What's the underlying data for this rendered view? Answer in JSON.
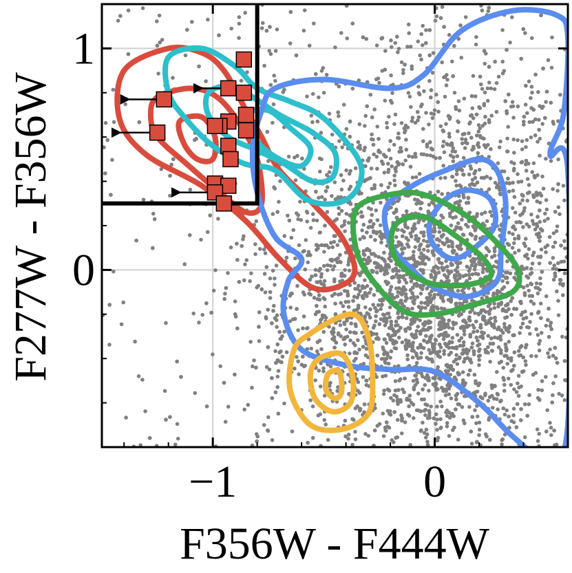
{
  "chart_data": {
    "type": "scatter",
    "title": "",
    "xlabel": "F356W - F444W",
    "ylabel": "F277W - F356W",
    "xlim": [
      -1.5,
      0.6
    ],
    "ylim": [
      -0.8,
      1.2
    ],
    "xticks": [
      {
        "value": -1,
        "label": "−1"
      },
      {
        "value": 0,
        "label": "0"
      }
    ],
    "yticks": [
      {
        "value": 0,
        "label": "0"
      },
      {
        "value": 1,
        "label": "1"
      }
    ],
    "grid": true,
    "selection_box": {
      "x_max": -0.8,
      "y_min": 0.3
    },
    "background_points": {
      "color": "#808080",
      "description_count": 4500,
      "bulk_center": [
        -0.05,
        -0.15
      ],
      "bulk_spread": [
        0.35,
        0.35
      ]
    },
    "contours": [
      {
        "color": "#D94C3D",
        "levels": [
          [
            [
              -1.4,
              0.9
            ],
            [
              -1.2,
              1.0
            ],
            [
              -1.05,
              0.98
            ],
            [
              -0.95,
              0.9
            ],
            [
              -0.85,
              0.72
            ],
            [
              -0.78,
              0.6
            ],
            [
              -0.7,
              0.45
            ],
            [
              -0.55,
              0.3
            ],
            [
              -0.42,
              0.15
            ],
            [
              -0.36,
              0.0
            ],
            [
              -0.42,
              -0.07
            ],
            [
              -0.55,
              -0.08
            ],
            [
              -0.7,
              0.05
            ],
            [
              -0.85,
              0.22
            ],
            [
              -1.05,
              0.38
            ],
            [
              -1.3,
              0.52
            ],
            [
              -1.42,
              0.68
            ]
          ],
          [
            [
              -1.25,
              0.78
            ],
            [
              -1.1,
              0.82
            ],
            [
              -0.98,
              0.78
            ],
            [
              -0.88,
              0.66
            ],
            [
              -0.8,
              0.5
            ],
            [
              -0.78,
              0.3
            ],
            [
              -0.85,
              0.26
            ],
            [
              -0.98,
              0.36
            ],
            [
              -1.12,
              0.48
            ],
            [
              -1.25,
              0.6
            ],
            [
              -1.28,
              0.7
            ]
          ],
          [
            [
              -1.15,
              0.67
            ],
            [
              -1.05,
              0.69
            ],
            [
              -0.99,
              0.6
            ],
            [
              -1.0,
              0.5
            ],
            [
              -1.07,
              0.5
            ],
            [
              -1.13,
              0.57
            ]
          ]
        ]
      },
      {
        "color": "#2DBFCB",
        "levels": [
          [
            [
              -1.2,
              0.96
            ],
            [
              -1.05,
              1.0
            ],
            [
              -0.9,
              0.92
            ],
            [
              -0.8,
              0.82
            ],
            [
              -0.65,
              0.76
            ],
            [
              -0.52,
              0.7
            ],
            [
              -0.4,
              0.58
            ],
            [
              -0.33,
              0.46
            ],
            [
              -0.36,
              0.35
            ],
            [
              -0.45,
              0.3
            ],
            [
              -0.58,
              0.32
            ],
            [
              -0.72,
              0.45
            ],
            [
              -0.86,
              0.48
            ],
            [
              -1.0,
              0.56
            ],
            [
              -1.12,
              0.68
            ],
            [
              -1.2,
              0.8
            ]
          ],
          [
            [
              -1.02,
              0.8
            ],
            [
              -0.92,
              0.83
            ],
            [
              -0.82,
              0.78
            ],
            [
              -0.7,
              0.7
            ],
            [
              -0.55,
              0.62
            ],
            [
              -0.45,
              0.53
            ],
            [
              -0.46,
              0.42
            ],
            [
              -0.55,
              0.4
            ],
            [
              -0.68,
              0.48
            ],
            [
              -0.8,
              0.54
            ],
            [
              -0.93,
              0.6
            ],
            [
              -1.02,
              0.7
            ]
          ],
          [
            [
              -0.85,
              0.7
            ],
            [
              -0.75,
              0.72
            ],
            [
              -0.65,
              0.64
            ],
            [
              -0.56,
              0.55
            ],
            [
              -0.6,
              0.47
            ],
            [
              -0.7,
              0.5
            ],
            [
              -0.8,
              0.58
            ]
          ]
        ]
      },
      {
        "color": "#5B8DEF",
        "levels": [
          [
            [
              -0.72,
              0.82
            ],
            [
              -0.5,
              0.86
            ],
            [
              -0.2,
              0.82
            ],
            [
              -0.05,
              0.88
            ],
            [
              0.12,
              1.08
            ],
            [
              0.35,
              1.17
            ],
            [
              0.55,
              1.15
            ],
            [
              0.6,
              1.05
            ],
            [
              0.58,
              0.7
            ],
            [
              0.52,
              0.52
            ],
            [
              0.6,
              0.45
            ],
            [
              0.6,
              -0.7
            ],
            [
              0.5,
              -0.85
            ],
            [
              0.35,
              -0.75
            ],
            [
              0.2,
              -0.6
            ],
            [
              0.0,
              -0.46
            ],
            [
              -0.2,
              -0.45
            ],
            [
              -0.4,
              -0.43
            ],
            [
              -0.6,
              -0.36
            ],
            [
              -0.68,
              -0.2
            ],
            [
              -0.66,
              -0.05
            ],
            [
              -0.6,
              0.05
            ],
            [
              -0.72,
              0.15
            ],
            [
              -0.8,
              0.35
            ],
            [
              -0.82,
              0.55
            ],
            [
              -0.78,
              0.72
            ]
          ],
          [
            [
              -0.22,
              0.28
            ],
            [
              -0.1,
              0.38
            ],
            [
              0.05,
              0.45
            ],
            [
              0.2,
              0.5
            ],
            [
              0.28,
              0.45
            ],
            [
              0.32,
              0.3
            ],
            [
              0.3,
              0.1
            ],
            [
              0.28,
              -0.05
            ],
            [
              0.15,
              -0.12
            ],
            [
              0.0,
              -0.08
            ],
            [
              -0.12,
              0.02
            ],
            [
              -0.2,
              0.12
            ]
          ],
          [
            [
              -0.02,
              0.22
            ],
            [
              0.05,
              0.32
            ],
            [
              0.15,
              0.36
            ],
            [
              0.25,
              0.32
            ],
            [
              0.27,
              0.2
            ],
            [
              0.18,
              0.1
            ],
            [
              0.08,
              0.05
            ],
            [
              -0.01,
              0.12
            ]
          ]
        ]
      },
      {
        "color": "#3EA84A",
        "levels": [
          [
            [
              -0.35,
              0.28
            ],
            [
              -0.2,
              0.34
            ],
            [
              -0.05,
              0.34
            ],
            [
              0.15,
              0.24
            ],
            [
              0.32,
              0.08
            ],
            [
              0.38,
              -0.02
            ],
            [
              0.35,
              -0.1
            ],
            [
              0.2,
              -0.15
            ],
            [
              0.0,
              -0.2
            ],
            [
              -0.15,
              -0.18
            ],
            [
              -0.3,
              -0.02
            ],
            [
              -0.36,
              0.12
            ]
          ],
          [
            [
              -0.18,
              0.2
            ],
            [
              -0.05,
              0.24
            ],
            [
              0.1,
              0.15
            ],
            [
              0.22,
              0.05
            ],
            [
              0.25,
              -0.03
            ],
            [
              0.12,
              -0.07
            ],
            [
              -0.05,
              -0.05
            ],
            [
              -0.18,
              0.06
            ]
          ]
        ]
      },
      {
        "color": "#F2B63C",
        "levels": [
          [
            [
              -0.58,
              -0.3
            ],
            [
              -0.38,
              -0.2
            ],
            [
              -0.3,
              -0.3
            ],
            [
              -0.28,
              -0.5
            ],
            [
              -0.3,
              -0.65
            ],
            [
              -0.42,
              -0.72
            ],
            [
              -0.56,
              -0.7
            ],
            [
              -0.65,
              -0.55
            ],
            [
              -0.64,
              -0.38
            ]
          ],
          [
            [
              -0.52,
              -0.4
            ],
            [
              -0.42,
              -0.38
            ],
            [
              -0.37,
              -0.48
            ],
            [
              -0.38,
              -0.6
            ],
            [
              -0.46,
              -0.64
            ],
            [
              -0.54,
              -0.58
            ],
            [
              -0.56,
              -0.47
            ]
          ],
          [
            [
              -0.48,
              -0.47
            ],
            [
              -0.43,
              -0.46
            ],
            [
              -0.42,
              -0.55
            ],
            [
              -0.45,
              -0.58
            ],
            [
              -0.49,
              -0.54
            ]
          ]
        ]
      }
    ],
    "highlight_points": {
      "color": "#D94C3D",
      "marker": "square",
      "points": [
        [
          -0.86,
          0.95
        ],
        [
          -0.86,
          0.8
        ],
        [
          -0.93,
          0.82
        ],
        [
          -0.85,
          0.7
        ],
        [
          -0.85,
          0.63
        ],
        [
          -0.93,
          0.67
        ],
        [
          -0.97,
          0.65
        ],
        [
          -0.93,
          0.56
        ],
        [
          -0.92,
          0.5
        ],
        [
          -0.99,
          0.65
        ],
        [
          -1.22,
          0.77
        ],
        [
          -1.25,
          0.62
        ],
        [
          -0.99,
          0.39
        ],
        [
          -0.93,
          0.38
        ],
        [
          -0.99,
          0.35
        ],
        [
          -0.95,
          0.3
        ]
      ],
      "upper_limit_arrows": [
        {
          "from": [
            -1.22,
            0.77
          ],
          "to": [
            -1.38,
            0.77
          ]
        },
        {
          "from": [
            -1.25,
            0.62
          ],
          "to": [
            -1.42,
            0.62
          ]
        },
        {
          "from": [
            -0.93,
            0.82
          ],
          "to": [
            -1.05,
            0.82
          ]
        },
        {
          "from": [
            -0.99,
            0.35
          ],
          "to": [
            -1.15,
            0.35
          ]
        }
      ]
    }
  }
}
